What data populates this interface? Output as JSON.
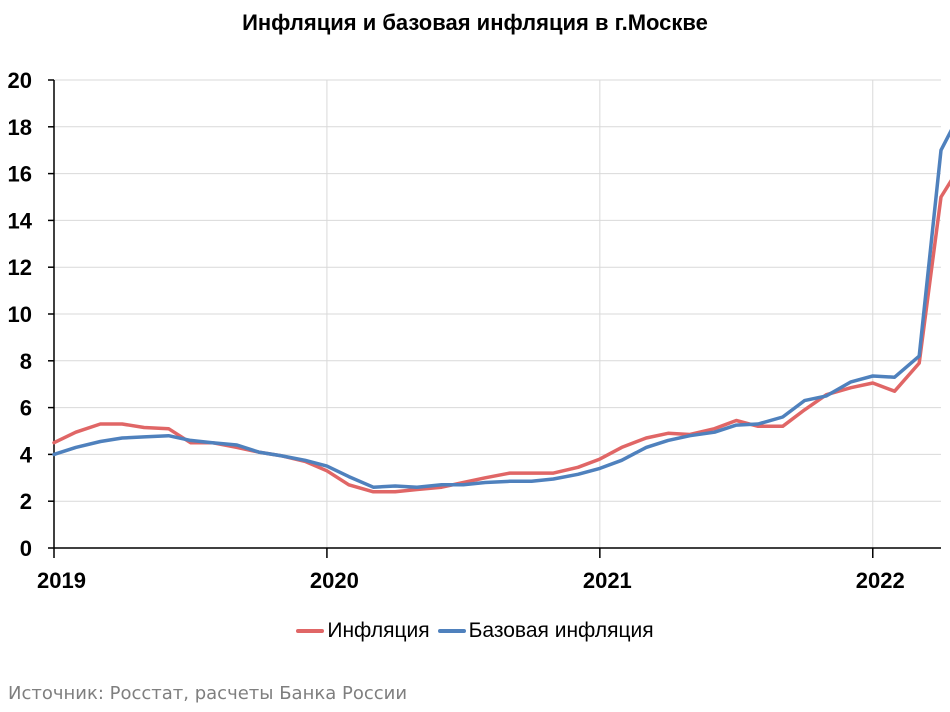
{
  "chart_data": {
    "type": "line",
    "title": "Инфляция и базовая инфляция в г.Москве",
    "xlabel": "",
    "ylabel": "",
    "x_ticks": [
      "2019",
      "2020",
      "2021",
      "2022"
    ],
    "x_range": [
      2019.0,
      2022.25
    ],
    "ylim": [
      0,
      20
    ],
    "y_ticks": [
      "0",
      "2",
      "4",
      "6",
      "8",
      "10",
      "12",
      "14",
      "16",
      "18",
      "20"
    ],
    "grid": true,
    "legend": "bottom",
    "series": [
      {
        "name": "Инфляция",
        "color": "#e06666",
        "points": [
          [
            2019.0,
            4.5
          ],
          [
            2019.08,
            4.95
          ],
          [
            2019.17,
            5.3
          ],
          [
            2019.25,
            5.3
          ],
          [
            2019.33,
            5.15
          ],
          [
            2019.42,
            5.1
          ],
          [
            2019.5,
            4.5
          ],
          [
            2019.58,
            4.5
          ],
          [
            2019.67,
            4.3
          ],
          [
            2019.75,
            4.1
          ],
          [
            2019.83,
            3.95
          ],
          [
            2019.92,
            3.7
          ],
          [
            2020.0,
            3.3
          ],
          [
            2020.08,
            2.7
          ],
          [
            2020.17,
            2.4
          ],
          [
            2020.25,
            2.4
          ],
          [
            2020.33,
            2.5
          ],
          [
            2020.42,
            2.6
          ],
          [
            2020.5,
            2.8
          ],
          [
            2020.58,
            3.0
          ],
          [
            2020.67,
            3.2
          ],
          [
            2020.75,
            3.2
          ],
          [
            2020.83,
            3.2
          ],
          [
            2020.92,
            3.45
          ],
          [
            2021.0,
            3.8
          ],
          [
            2021.08,
            4.3
          ],
          [
            2021.17,
            4.7
          ],
          [
            2021.25,
            4.9
          ],
          [
            2021.33,
            4.85
          ],
          [
            2021.42,
            5.1
          ],
          [
            2021.5,
            5.45
          ],
          [
            2021.58,
            5.2
          ],
          [
            2021.67,
            5.2
          ],
          [
            2021.75,
            5.9
          ],
          [
            2021.83,
            6.55
          ],
          [
            2021.92,
            6.85
          ],
          [
            2022.0,
            7.05
          ],
          [
            2022.08,
            6.7
          ],
          [
            2022.17,
            7.9
          ],
          [
            2022.25,
            15.0
          ],
          [
            2022.33,
            16.5
          ]
        ]
      },
      {
        "name": "Базовая инфляция",
        "color": "#4f81bd",
        "points": [
          [
            2019.0,
            4.0
          ],
          [
            2019.08,
            4.3
          ],
          [
            2019.17,
            4.55
          ],
          [
            2019.25,
            4.7
          ],
          [
            2019.33,
            4.75
          ],
          [
            2019.42,
            4.8
          ],
          [
            2019.5,
            4.6
          ],
          [
            2019.58,
            4.5
          ],
          [
            2019.67,
            4.4
          ],
          [
            2019.75,
            4.1
          ],
          [
            2019.83,
            3.95
          ],
          [
            2019.92,
            3.75
          ],
          [
            2020.0,
            3.5
          ],
          [
            2020.08,
            3.05
          ],
          [
            2020.17,
            2.6
          ],
          [
            2020.25,
            2.65
          ],
          [
            2020.33,
            2.6
          ],
          [
            2020.42,
            2.7
          ],
          [
            2020.5,
            2.7
          ],
          [
            2020.58,
            2.8
          ],
          [
            2020.67,
            2.85
          ],
          [
            2020.75,
            2.85
          ],
          [
            2020.83,
            2.95
          ],
          [
            2020.92,
            3.15
          ],
          [
            2021.0,
            3.4
          ],
          [
            2021.08,
            3.75
          ],
          [
            2021.17,
            4.3
          ],
          [
            2021.25,
            4.6
          ],
          [
            2021.33,
            4.8
          ],
          [
            2021.42,
            4.95
          ],
          [
            2021.5,
            5.25
          ],
          [
            2021.58,
            5.3
          ],
          [
            2021.67,
            5.6
          ],
          [
            2021.75,
            6.3
          ],
          [
            2021.83,
            6.5
          ],
          [
            2021.92,
            7.1
          ],
          [
            2022.0,
            7.35
          ],
          [
            2022.08,
            7.3
          ],
          [
            2022.17,
            8.2
          ],
          [
            2022.25,
            17.0
          ],
          [
            2022.33,
            18.8
          ]
        ]
      }
    ]
  },
  "source": "Источник: Росстат, расчеты Банка России"
}
